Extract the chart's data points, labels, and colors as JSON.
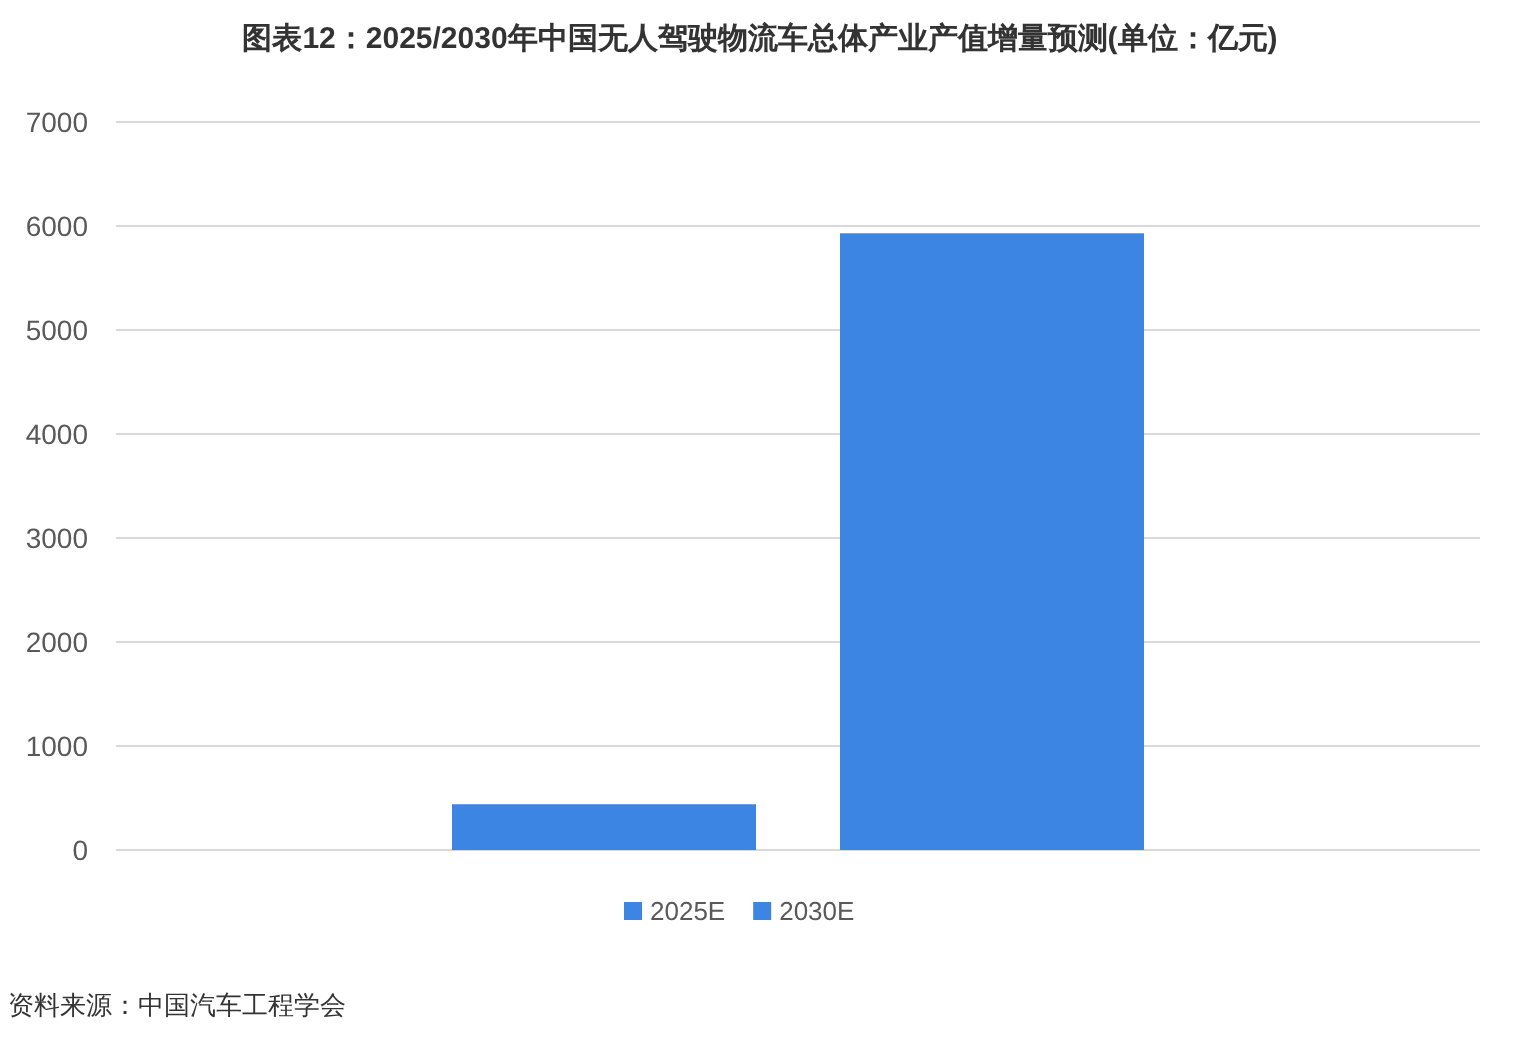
{
  "chart_data": {
    "type": "bar",
    "title": "图表12：2025/2030年中国无人驾驶物流车总体产业产值增量预测(单位：亿元)",
    "categories": [
      null
    ],
    "series": [
      {
        "name": "2025E",
        "color": "#3d85e2",
        "values": [
          440
        ]
      },
      {
        "name": "2030E",
        "color": "#3d85e2",
        "values": [
          5930
        ]
      }
    ],
    "ylim": [
      0,
      7000
    ],
    "yticks": [
      0,
      1000,
      2000,
      3000,
      4000,
      5000,
      6000,
      7000
    ],
    "grid": "y",
    "legend": "bottom",
    "annotations": [
      "资料来源：中国汽车工程学会"
    ]
  }
}
